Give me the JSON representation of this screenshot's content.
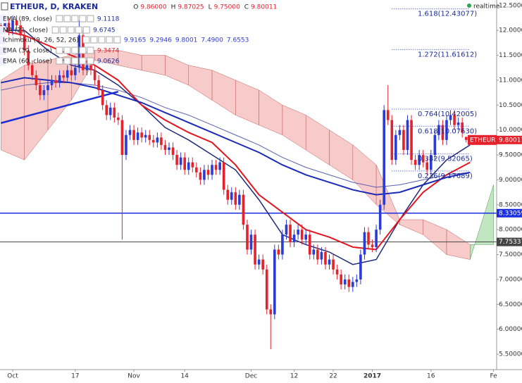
{
  "chart_data": {
    "type": "candlestick",
    "title": "ETHEUR, D, KRAKEN",
    "header_ohlc": [
      {
        "key": "O",
        "value": "9.86000"
      },
      {
        "key": "H",
        "value": "9.87025"
      },
      {
        "key": "L",
        "value": "9.75000"
      },
      {
        "key": "C",
        "value": "9.80011"
      }
    ],
    "realtime": "realtime",
    "xlim": [
      -3.25,
      123.8
    ],
    "ylim": [
      5.19,
      12.61
    ],
    "xticks": [
      {
        "value": 0,
        "label": "Oct"
      },
      {
        "value": 16,
        "label": "17"
      },
      {
        "value": 31,
        "label": "Nov"
      },
      {
        "value": 44,
        "label": "14"
      },
      {
        "value": 61,
        "label": "Dec"
      },
      {
        "value": 72,
        "label": "12"
      },
      {
        "value": 82,
        "label": "22"
      },
      {
        "value": 92,
        "label": "2017"
      },
      {
        "value": 107,
        "label": "16"
      },
      {
        "value": 123,
        "label": "Fe"
      }
    ],
    "yticks": [
      {
        "value": 12.5,
        "label": "12.50000"
      },
      {
        "value": 12,
        "label": "12.00000"
      },
      {
        "value": 11.5,
        "label": "11.50000"
      },
      {
        "value": 11,
        "label": "11.00000"
      },
      {
        "value": 10.5,
        "label": "10.50000"
      },
      {
        "value": 10,
        "label": "10.00000"
      },
      {
        "value": 9.5,
        "label": "9.50000"
      },
      {
        "value": 9,
        "label": "9.00000"
      },
      {
        "value": 8.5,
        "label": "8.50000"
      },
      {
        "value": 8,
        "label": "8.00000"
      },
      {
        "value": 7.5,
        "label": "7.50000"
      },
      {
        "value": 7,
        "label": "7.00000"
      },
      {
        "value": 6.5,
        "label": "6.50000"
      },
      {
        "value": 6,
        "label": "6.00000"
      },
      {
        "value": 5.5,
        "label": "5.50000"
      }
    ],
    "candles": {
      "up_color": "#2b3bd6",
      "down_color": "#e5222c",
      "x": [
        -3,
        -2,
        -1,
        0,
        1,
        2,
        3,
        4,
        5,
        6,
        7,
        8,
        9,
        10,
        11,
        12,
        13,
        14,
        15,
        16,
        17,
        18,
        19,
        20,
        21,
        22,
        23,
        24,
        25,
        26,
        27,
        28,
        29,
        30,
        31,
        32,
        33,
        34,
        35,
        36,
        37,
        38,
        39,
        40,
        41,
        42,
        43,
        44,
        45,
        46,
        47,
        48,
        49,
        50,
        51,
        52,
        53,
        54,
        55,
        56,
        57,
        58,
        59,
        60,
        61,
        62,
        63,
        64,
        65,
        66,
        67,
        68,
        69,
        70,
        71,
        72,
        73,
        74,
        75,
        76,
        77,
        78,
        79,
        80,
        81,
        82,
        83,
        84,
        85,
        86,
        87,
        88,
        89,
        90,
        91,
        92,
        93,
        94,
        95,
        96,
        97,
        98,
        99,
        100,
        101,
        102,
        103,
        104,
        105,
        106,
        107,
        108,
        109,
        110,
        111,
        112,
        113,
        114,
        115,
        116
      ],
      "open": [
        12.1,
        12.05,
        12.15,
        12.0,
        12.2,
        12.1,
        11.9,
        11.6,
        11.3,
        11.1,
        10.9,
        10.7,
        10.8,
        10.9,
        11.0,
        10.95,
        11.1,
        11.05,
        11.2,
        11.1,
        11.25,
        11.9,
        11.2,
        11.3,
        11.2,
        11.0,
        10.8,
        10.5,
        10.3,
        10.45,
        10.25,
        10.2,
        9.5,
        9.9,
        10.0,
        9.8,
        9.95,
        9.85,
        9.9,
        9.8,
        9.75,
        9.85,
        9.7,
        9.6,
        9.65,
        9.5,
        9.3,
        9.45,
        9.2,
        9.35,
        9.25,
        9.15,
        9.0,
        9.2,
        9.1,
        9.3,
        9.2,
        9.35,
        8.8,
        8.6,
        8.75,
        8.5,
        8.7,
        8.1,
        7.6,
        7.9,
        7.3,
        7.4,
        7.2,
        6.4,
        6.3,
        7.6,
        7.5,
        7.9,
        8.1,
        7.75,
        7.9,
        8.0,
        7.8,
        7.9,
        7.5,
        7.6,
        7.4,
        7.55,
        7.3,
        7.4,
        7.2,
        7.1,
        6.9,
        7.0,
        6.85,
        6.95,
        7.0,
        7.5,
        7.95,
        7.7,
        7.65,
        8.0,
        8.5,
        10.4,
        10.2,
        9.4,
        9.9,
        10.0,
        9.6,
        10.2,
        9.4,
        9.3,
        9.5,
        9.35,
        9.2,
        9.5,
        9.9,
        10.1,
        9.8,
        10.2,
        10.3,
        10.1,
        10.15,
        9.86
      ],
      "high": [
        12.2,
        12.25,
        12.25,
        12.3,
        12.3,
        12.2,
        12.0,
        11.7,
        11.4,
        11.2,
        11.0,
        10.9,
        11.0,
        11.1,
        11.1,
        11.2,
        11.2,
        11.3,
        11.3,
        11.35,
        12.2,
        12.0,
        11.4,
        11.4,
        11.3,
        11.1,
        10.9,
        10.6,
        10.55,
        10.55,
        10.35,
        10.3,
        10.0,
        10.1,
        10.1,
        10.05,
        10.05,
        10.0,
        10.0,
        9.9,
        9.95,
        9.95,
        9.8,
        9.75,
        9.75,
        9.6,
        9.55,
        9.55,
        9.45,
        9.45,
        9.35,
        9.25,
        9.3,
        9.3,
        9.4,
        9.4,
        9.45,
        9.45,
        8.9,
        8.85,
        8.85,
        8.8,
        8.8,
        8.2,
        8.0,
        8.0,
        7.5,
        7.5,
        7.3,
        6.5,
        7.7,
        7.7,
        8.0,
        8.2,
        8.2,
        8.0,
        8.1,
        8.1,
        8.0,
        8.0,
        7.7,
        7.7,
        7.65,
        7.65,
        7.5,
        7.5,
        7.3,
        7.2,
        7.1,
        7.1,
        7.05,
        7.1,
        7.6,
        8.05,
        8.05,
        7.8,
        8.1,
        8.6,
        10.5,
        10.9,
        10.3,
        10.0,
        10.1,
        10.1,
        10.3,
        10.3,
        9.5,
        9.6,
        9.6,
        9.45,
        9.6,
        10.0,
        10.2,
        10.2,
        10.3,
        10.4,
        10.4,
        10.25,
        10.25,
        9.87025
      ],
      "low": [
        11.95,
        11.95,
        11.9,
        11.9,
        12.0,
        11.8,
        11.5,
        11.2,
        11.0,
        10.8,
        10.6,
        10.6,
        10.7,
        10.8,
        10.85,
        10.85,
        10.95,
        10.95,
        11.0,
        11.0,
        11.15,
        11.1,
        11.1,
        11.1,
        10.9,
        10.7,
        10.4,
        10.2,
        10.2,
        10.15,
        10.1,
        7.8,
        9.4,
        9.8,
        9.7,
        9.7,
        9.75,
        9.75,
        9.7,
        9.65,
        9.65,
        9.6,
        9.5,
        9.5,
        9.4,
        9.2,
        9.2,
        9.1,
        9.1,
        9.15,
        9.05,
        8.9,
        8.9,
        9.0,
        9.0,
        9.1,
        9.1,
        8.7,
        8.5,
        8.5,
        8.4,
        8.4,
        8.0,
        7.5,
        7.5,
        7.2,
        7.2,
        7.1,
        6.3,
        5.6,
        6.2,
        7.4,
        7.4,
        7.8,
        7.65,
        7.65,
        7.8,
        7.7,
        7.7,
        7.4,
        7.4,
        7.3,
        7.3,
        7.2,
        7.2,
        7.1,
        7.0,
        6.8,
        6.8,
        6.75,
        6.75,
        6.85,
        6.9,
        7.4,
        7.6,
        7.55,
        7.55,
        7.9,
        8.4,
        10.1,
        9.3,
        9.3,
        9.8,
        9.5,
        9.5,
        9.3,
        9.2,
        9.2,
        9.25,
        9.1,
        9.1,
        9.4,
        9.8,
        9.7,
        9.7,
        10.1,
        10.0,
        10.0,
        9.85,
        9.75
      ],
      "close": [
        12.05,
        12.15,
        12.0,
        12.2,
        12.1,
        11.9,
        11.6,
        11.3,
        11.1,
        10.9,
        10.7,
        10.8,
        10.9,
        11.0,
        10.95,
        11.1,
        11.05,
        11.2,
        11.1,
        11.25,
        11.9,
        11.2,
        11.3,
        11.2,
        11.0,
        10.8,
        10.5,
        10.3,
        10.45,
        10.25,
        10.2,
        9.5,
        9.9,
        10.0,
        9.8,
        9.95,
        9.85,
        9.9,
        9.8,
        9.75,
        9.85,
        9.7,
        9.6,
        9.65,
        9.5,
        9.3,
        9.45,
        9.2,
        9.35,
        9.25,
        9.15,
        9.0,
        9.2,
        9.1,
        9.3,
        9.2,
        9.35,
        8.8,
        8.6,
        8.75,
        8.5,
        8.7,
        8.1,
        7.6,
        7.9,
        7.3,
        7.4,
        7.2,
        6.4,
        6.3,
        7.6,
        7.5,
        7.9,
        8.1,
        7.75,
        7.9,
        8.0,
        7.8,
        7.9,
        7.5,
        7.6,
        7.4,
        7.55,
        7.3,
        7.4,
        7.2,
        7.1,
        6.9,
        7.0,
        6.85,
        6.95,
        7.0,
        7.5,
        7.95,
        7.7,
        7.65,
        8.0,
        8.5,
        10.4,
        10.2,
        9.4,
        9.9,
        10.0,
        9.6,
        10.2,
        9.4,
        9.3,
        9.5,
        9.35,
        9.2,
        9.5,
        9.9,
        10.1,
        9.8,
        10.2,
        10.3,
        10.1,
        10.15,
        9.95,
        9.80011
      ]
    },
    "indicator_x": [
      -3,
      3,
      9,
      15,
      21,
      27,
      33,
      39,
      45,
      51,
      57,
      63,
      69,
      75,
      81,
      87,
      93,
      99,
      105,
      111,
      117
    ],
    "lines": [
      {
        "name": "EMA (89, close)",
        "legend_values": [
          "9.1118"
        ],
        "color": "#5a5fb0",
        "width": 1,
        "values": [
          10.8,
          10.9,
          10.95,
          10.95,
          10.9,
          10.8,
          10.65,
          10.45,
          10.3,
          10.1,
          9.9,
          9.7,
          9.45,
          9.25,
          9.1,
          8.95,
          8.85,
          8.9,
          9.0,
          9.1,
          9.15
        ]
      },
      {
        "name": "MA (21, close)",
        "legend_values": [
          "9.6745"
        ],
        "color": "#1f2a7a",
        "width": 1.5,
        "values": [
          12.0,
          12.0,
          11.6,
          11.3,
          11.2,
          10.9,
          10.5,
          10.05,
          9.8,
          9.5,
          9.2,
          8.6,
          7.9,
          7.7,
          7.55,
          7.3,
          7.4,
          8.2,
          8.9,
          9.4,
          9.7
        ]
      },
      {
        "name": "EMA (30, close)",
        "legend_values": [
          "9.3474"
        ],
        "color": "#e2161f",
        "width": 2,
        "values": [
          12.0,
          11.9,
          11.7,
          11.5,
          11.3,
          11.0,
          10.5,
          10.2,
          9.95,
          9.75,
          9.3,
          8.7,
          8.35,
          8.0,
          7.85,
          7.65,
          7.6,
          8.2,
          8.75,
          9.1,
          9.35
        ]
      },
      {
        "name": "EMA (60, close)",
        "legend_values": [
          "9.0626"
        ],
        "color": "#1b2bb5",
        "width": 2,
        "values": [
          10.95,
          11.05,
          11.0,
          10.95,
          10.85,
          10.7,
          10.55,
          10.35,
          10.15,
          9.95,
          9.75,
          9.55,
          9.3,
          9.1,
          8.95,
          8.8,
          8.7,
          8.75,
          8.9,
          9.05,
          9.15
        ]
      }
    ],
    "regression": {
      "color": "#1b2fd0",
      "x": [
        -3,
        27
      ],
      "values": [
        10.14,
        10.77
      ]
    },
    "cloud": {
      "name": "Ichimoku (9, 26, 52, 26)",
      "legend_values": [
        "9.9165",
        "9.2946",
        "9.8001",
        "7.4900",
        "7.6553"
      ],
      "up_color": "#8fd08f",
      "down_color": "#f3a0a0",
      "x": [
        -3,
        3,
        9,
        15,
        21,
        27,
        33,
        39,
        45,
        51,
        57,
        63,
        69,
        75,
        81,
        87,
        93,
        99,
        105,
        111,
        117,
        123
      ],
      "span_a": [
        9.6,
        9.4,
        10.0,
        10.6,
        11.4,
        11.3,
        11.2,
        11.1,
        10.9,
        10.6,
        10.3,
        10.1,
        9.9,
        9.6,
        9.3,
        9.0,
        8.5,
        8.1,
        7.9,
        7.5,
        7.4,
        8.9
      ],
      "span_b": [
        11.0,
        11.3,
        11.4,
        11.5,
        11.6,
        11.6,
        11.5,
        11.5,
        11.3,
        11.2,
        11.0,
        10.8,
        10.5,
        10.3,
        10.0,
        9.7,
        9.3,
        8.2,
        8.2,
        8.0,
        7.7,
        7.7
      ]
    },
    "hlines": [
      {
        "value": 8.33059,
        "color": "#1a2ee0"
      },
      {
        "value": 7.75337,
        "color": "#444444"
      }
    ],
    "price_tag": {
      "name": "ETHEUR",
      "value": 9.80011,
      "color": "#e5222c"
    },
    "fib": {
      "x": [
        97,
        117
      ],
      "levels": [
        {
          "label": "1.618(12.43077)",
          "value": 12.43077
        },
        {
          "label": "1.272(11.61612)",
          "value": 11.61612
        },
        {
          "label": "0.764(10.42005)",
          "value": 10.42005
        },
        {
          "label": "0.618(10.07630)",
          "value": 10.0763
        },
        {
          "label": "0.382(9.52065)",
          "value": 9.52065
        },
        {
          "label": "0.236(9.17689)",
          "value": 9.17689
        }
      ]
    }
  }
}
